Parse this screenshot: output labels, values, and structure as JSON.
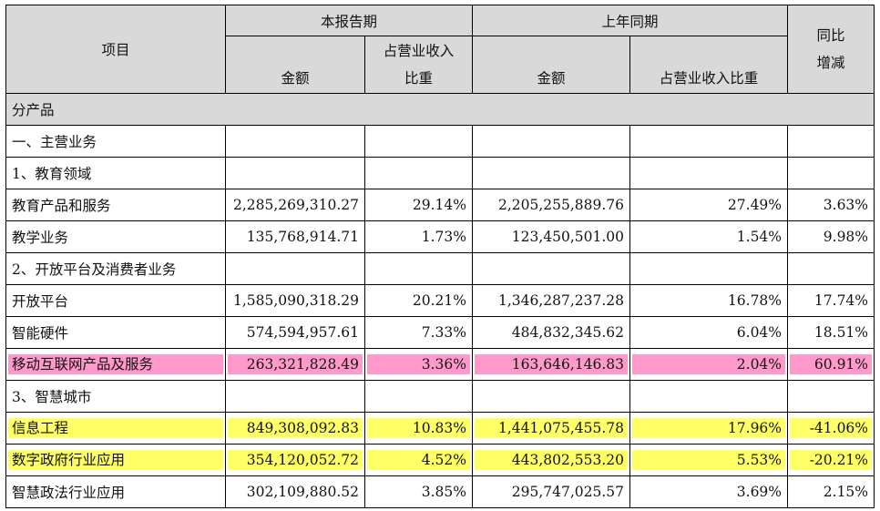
{
  "header": {
    "item": "项目",
    "current_period": "本报告期",
    "prior_period": "上年同期",
    "yoy": "同比\n增减",
    "yoy_line1": "同比",
    "yoy_line2": "增减",
    "amount": "金额",
    "share_current_line1": "占营业收入",
    "share_current_line2": "比重",
    "share_prior": "占营业收入比重"
  },
  "rows": [
    {
      "type": "section",
      "label": "分产品"
    },
    {
      "type": "group",
      "label": "一、主营业务"
    },
    {
      "type": "group",
      "label": "1、教育领域"
    },
    {
      "type": "data",
      "label": "教育产品和服务",
      "amount": "2,285,269,310.27",
      "share": "29.14%",
      "prior_amount": "2,205,255,889.76",
      "prior_share": "27.49%",
      "yoy": "3.63%",
      "highlight": ""
    },
    {
      "type": "data",
      "label": "教学业务",
      "amount": "135,768,914.71",
      "share": "1.73%",
      "prior_amount": "123,450,501.00",
      "prior_share": "1.54%",
      "yoy": "9.98%",
      "highlight": ""
    },
    {
      "type": "group",
      "label": "2、开放平台及消费者业务"
    },
    {
      "type": "data",
      "label": "开放平台",
      "amount": "1,585,090,318.29",
      "share": "20.21%",
      "prior_amount": "1,346,287,237.28",
      "prior_share": "16.78%",
      "yoy": "17.74%",
      "highlight": ""
    },
    {
      "type": "data",
      "label": "智能硬件",
      "amount": "574,594,957.61",
      "share": "7.33%",
      "prior_amount": "484,832,345.62",
      "prior_share": "6.04%",
      "yoy": "18.51%",
      "highlight": ""
    },
    {
      "type": "data",
      "label": "移动互联网产品及服务",
      "amount": "263,321,828.49",
      "share": "3.36%",
      "prior_amount": "163,646,146.83",
      "prior_share": "2.04%",
      "yoy": "60.91%",
      "highlight": "pink"
    },
    {
      "type": "group",
      "label": "3、智慧城市"
    },
    {
      "type": "data",
      "label": "信息工程",
      "amount": "849,308,092.83",
      "share": "10.83%",
      "prior_amount": "1,441,075,455.78",
      "prior_share": "17.96%",
      "yoy": "-41.06%",
      "highlight": "yellow"
    },
    {
      "type": "data",
      "label": "数字政府行业应用",
      "amount": "354,120,052.72",
      "share": "4.52%",
      "prior_amount": "443,802,553.20",
      "prior_share": "5.53%",
      "yoy": "-20.21%",
      "highlight": "yellow"
    },
    {
      "type": "data",
      "label": "智慧政法行业应用",
      "amount": "302,109,880.52",
      "share": "3.85%",
      "prior_amount": "295,747,025.57",
      "prior_share": "3.69%",
      "yoy": "2.15%",
      "highlight": ""
    }
  ],
  "colors": {
    "header_bg": "#d9d9d9",
    "pink_highlight": "#ff99cc",
    "yellow_highlight": "#ffff66"
  }
}
